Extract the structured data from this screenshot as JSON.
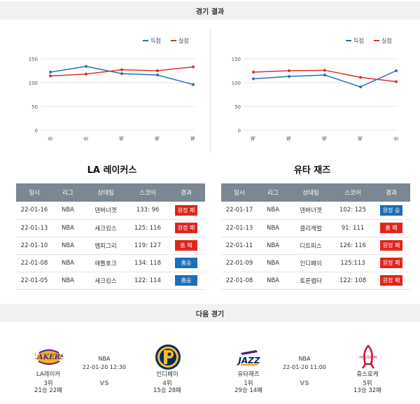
{
  "sections": {
    "results_title": "경기 결과",
    "next_title": "다음 경기"
  },
  "legend": {
    "scored": "득점",
    "conceded": "실점"
  },
  "colors": {
    "scored": "#2e6db4",
    "conceded": "#d9332b",
    "win_badge": "#1b6fb5",
    "loss_badge": "#e0241c",
    "header": "#7b8792"
  },
  "chart_data": [
    {
      "type": "line",
      "categories": [
        "승",
        "승",
        "패",
        "패",
        "패"
      ],
      "series": [
        {
          "name": "득점",
          "values": [
            122,
            134,
            119,
            116,
            96
          ]
        },
        {
          "name": "실점",
          "values": [
            114,
            118,
            127,
            125,
            133
          ]
        }
      ],
      "yticks": [
        0,
        50,
        100,
        150
      ],
      "ylim": [
        0,
        150
      ],
      "grid": true,
      "legend_position": "top-right"
    },
    {
      "type": "line",
      "categories": [
        "패",
        "패",
        "패",
        "패",
        "승"
      ],
      "series": [
        {
          "name": "득점",
          "values": [
            108,
            113,
            116,
            91,
            125
          ]
        },
        {
          "name": "실점",
          "values": [
            122,
            125,
            126,
            111,
            102
          ]
        }
      ],
      "yticks": [
        0,
        50,
        100,
        150
      ],
      "ylim": [
        0,
        150
      ],
      "grid": true,
      "legend_position": "top-right"
    }
  ],
  "table_headers": [
    "일시",
    "리그",
    "상대팀",
    "스코어",
    "결과"
  ],
  "teams": [
    {
      "title": "LA 레이커스",
      "rows": [
        {
          "date": "22-01-16",
          "league": "NBA",
          "opponent": "덴버너겟",
          "score": "133: 96",
          "result": "원정 패",
          "color": "red"
        },
        {
          "date": "22-01-13",
          "league": "NBA",
          "opponent": "새크킹스",
          "score": "125: 116",
          "result": "원정 패",
          "color": "red"
        },
        {
          "date": "22-01-10",
          "league": "NBA",
          "opponent": "멤피그리",
          "score": "119: 127",
          "result": "홈 패",
          "color": "red"
        },
        {
          "date": "22-01-08",
          "league": "NBA",
          "opponent": "애틀호크",
          "score": "134: 118",
          "result": "홈승",
          "color": "blue"
        },
        {
          "date": "22-01-05",
          "league": "NBA",
          "opponent": "새크킹스",
          "score": "122: 114",
          "result": "홈승",
          "color": "blue"
        }
      ]
    },
    {
      "title": "유타 재즈",
      "rows": [
        {
          "date": "22-01-17",
          "league": "NBA",
          "opponent": "덴버너겟",
          "score": "102: 125",
          "result": "원정 승",
          "color": "blue"
        },
        {
          "date": "22-01-13",
          "league": "NBA",
          "opponent": "클리캐벌",
          "score": "91: 111",
          "result": "홈 패",
          "color": "red"
        },
        {
          "date": "22-01-11",
          "league": "NBA",
          "opponent": "디트피스",
          "score": "126: 116",
          "result": "원정 패",
          "color": "red"
        },
        {
          "date": "22-01-09",
          "league": "NBA",
          "opponent": "인디페이",
          "score": "125:113",
          "result": "원정 패",
          "color": "red"
        },
        {
          "date": "22-01-08",
          "league": "NBA",
          "opponent": "토론랩터",
          "score": "122: 108",
          "result": "원정 패",
          "color": "red"
        }
      ]
    }
  ],
  "matchups": [
    {
      "league": "NBA",
      "datetime": "22-01-20 12:30",
      "vs": "VS",
      "home": {
        "name": "LA레이커",
        "rank": "3위",
        "record": "21승 22패",
        "logo": "lakers-logo"
      },
      "away": {
        "name": "인디페이",
        "rank": "4위",
        "record": "15승 28패",
        "logo": "pacers-logo"
      }
    },
    {
      "league": "NBA",
      "datetime": "22-01-20 11:00",
      "vs": "VS",
      "home": {
        "name": "유타재즈",
        "rank": "1위",
        "record": "29승 14패",
        "logo": "jazz-logo"
      },
      "away": {
        "name": "휴스로케",
        "rank": "5위",
        "record": "13승 32패",
        "logo": "rockets-logo"
      }
    }
  ]
}
